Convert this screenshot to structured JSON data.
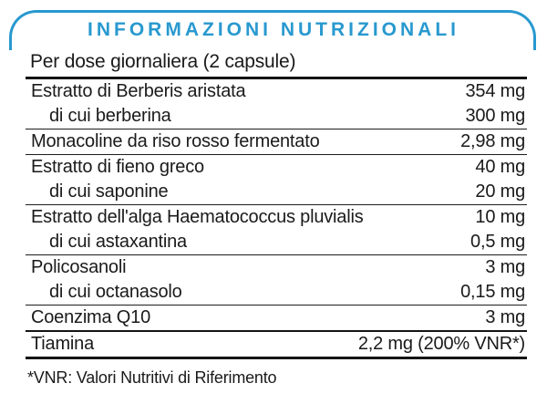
{
  "colors": {
    "accent_blue": "#2899cf",
    "rule_black": "#141414",
    "text": "#1a1a1a"
  },
  "panel": {
    "title": "INFORMAZIONI NUTRIZIONALI",
    "serving_line": "Per dose giornaliera (2 capsule)",
    "footnote": "*VNR: Valori Nutritivi di Riferimento"
  },
  "table": {
    "sections": [
      {
        "rows": [
          {
            "label": "Estratto di Berberis aristata",
            "value": "354 mg",
            "indent": false
          },
          {
            "label": "di cui berberina",
            "value": "300 mg",
            "indent": true
          }
        ]
      },
      {
        "rows": [
          {
            "label": "Monacoline da riso rosso fermentato",
            "value": "2,98 mg",
            "indent": false
          }
        ]
      },
      {
        "rows": [
          {
            "label": "Estratto di fieno greco",
            "value": "40 mg",
            "indent": false
          },
          {
            "label": "di cui saponine",
            "value": "20 mg",
            "indent": true
          }
        ]
      },
      {
        "rows": [
          {
            "label": "Estratto dell'alga Haematococcus pluvialis",
            "value": "10 mg",
            "indent": false
          },
          {
            "label": "di cui astaxantina",
            "value": "0,5 mg",
            "indent": true
          }
        ]
      },
      {
        "rows": [
          {
            "label": "Policosanoli",
            "value": "3 mg",
            "indent": false
          },
          {
            "label": "di cui octanasolo",
            "value": "0,15 mg",
            "indent": true
          }
        ]
      },
      {
        "rows": [
          {
            "label": "Coenzima Q10",
            "value": "3 mg",
            "indent": false
          }
        ]
      },
      {
        "rows": [
          {
            "label": "Tiamina",
            "value": "2,2 mg (200% VNR*)",
            "indent": false
          }
        ]
      }
    ]
  }
}
